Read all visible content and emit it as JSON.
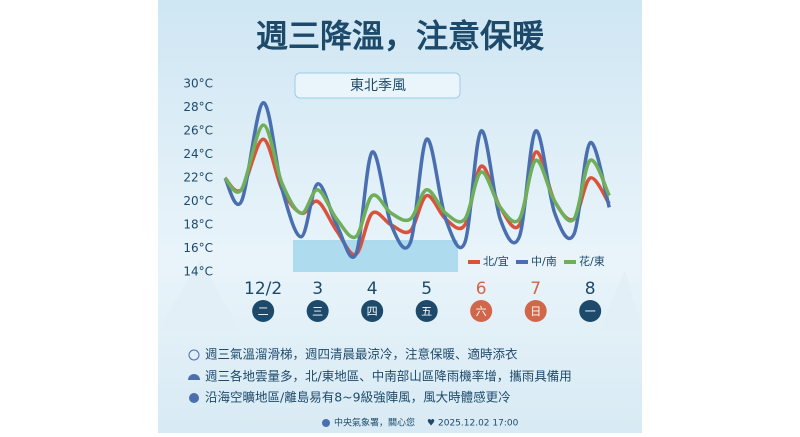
{
  "title": "週三降溫，注意保暖",
  "banner": "東北季風",
  "chart_data": {
    "type": "line",
    "x": [
      1.3,
      1.6,
      2.0,
      2.35,
      2.7,
      3.0,
      3.35,
      3.7,
      4.0,
      4.35,
      4.7,
      5.0,
      5.35,
      5.7,
      6.0,
      6.35,
      6.7,
      7.0,
      7.35,
      7.7,
      8.0,
      8.35
    ],
    "series": [
      {
        "name": "北/宜",
        "color": "#d9533b",
        "values": [
          22,
          21,
          25.3,
          21,
          19,
          20,
          17.5,
          15.5,
          19,
          18,
          17.5,
          20.5,
          18.5,
          18,
          23,
          19.5,
          18,
          24.2,
          20,
          18.5,
          22,
          19.8
        ]
      },
      {
        "name": "中/南",
        "color": "#4a6fb0",
        "values": [
          22,
          20,
          28.4,
          21,
          17,
          21.5,
          18,
          15.5,
          24.2,
          18,
          16.5,
          25.3,
          18.5,
          16.5,
          26,
          18.5,
          17,
          26,
          19,
          17.2,
          25,
          19.5
        ]
      },
      {
        "name": "花/東",
        "color": "#6fae5a",
        "values": [
          22,
          21,
          26.5,
          21.5,
          19,
          21,
          18.5,
          17,
          20.5,
          19,
          18.5,
          21,
          19,
          18.5,
          22.5,
          19.5,
          18.5,
          23.5,
          20,
          18.5,
          23.5,
          20.5
        ]
      }
    ],
    "xlim": [
      1.3,
      8.4
    ],
    "xticks": [
      {
        "value": 2,
        "label": "12/2"
      },
      3,
      4,
      5,
      6,
      7,
      8
    ],
    "weekdays": [
      "二",
      "三",
      "四",
      "五",
      "六",
      "日",
      "一"
    ],
    "tick_colors": [
      "#1d4a6b",
      "#1d4a6b",
      "#1d4a6b",
      "#1d4a6b",
      "#d0664a",
      "#d0664a",
      "#1d4a6b"
    ],
    "ylim": [
      14,
      30
    ],
    "yticks": [
      {
        "value": 14,
        "label": "14°C"
      },
      {
        "value": 16,
        "label": "16°C"
      },
      {
        "value": 18,
        "label": "18°C"
      },
      {
        "value": 20,
        "label": "20°C"
      },
      {
        "value": 22,
        "label": "22°C"
      },
      {
        "value": 24,
        "label": "24°C"
      },
      {
        "value": 26,
        "label": "26°C"
      },
      {
        "value": 28,
        "label": "28°C"
      },
      {
        "value": 30,
        "label": "30°C"
      }
    ],
    "legend": "bottom-right"
  },
  "notes": [
    "週三氣溫溜滑梯，週四清晨最涼冷，注意保暖、適時添衣",
    "週三各地雲量多，北/東地區、中南部山區降雨機率增，攜雨具備用",
    "沿海空曠地區/離島易有8~9級強陣風，風大時體感更冷"
  ],
  "footer": {
    "agency": "中央氣象署，關心您",
    "time": "2025.12.02 17:00"
  }
}
